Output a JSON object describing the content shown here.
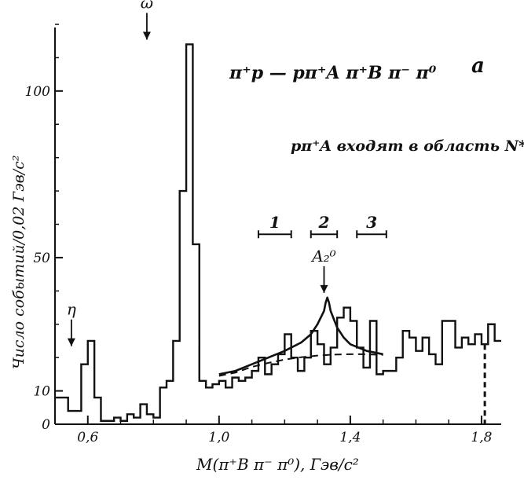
{
  "chart_data": {
    "type": "histogram",
    "reaction": "π⁺p — pπ⁺A π⁺B π⁻ π⁰",
    "panel_label": "a",
    "condition": "pπ⁺A входят в область N*++",
    "xlabel": "M(π⁺B π⁻ π⁰), Гэв/c²",
    "ylabel": "Число событий/0,02 Гэв/c²",
    "xlim": [
      0.5,
      1.86
    ],
    "ylim": [
      0,
      120
    ],
    "x_ticks": [
      0.6,
      1.0,
      1.4,
      1.8
    ],
    "x_tick_labels": [
      "0,6",
      "1,0",
      "1,4",
      "1,8"
    ],
    "y_ticks": [
      0,
      10,
      50,
      100
    ],
    "y_tick_labels": [
      "0",
      "10",
      "50",
      "100"
    ],
    "bin_width": 0.02,
    "bins_start": 0.5,
    "counts": [
      8,
      8,
      4,
      4,
      18,
      25,
      8,
      1,
      1,
      2,
      1,
      3,
      2,
      6,
      3,
      2,
      11,
      13,
      25,
      70,
      114,
      54,
      13,
      11,
      12,
      13,
      11,
      14,
      13,
      14,
      16,
      20,
      15,
      18,
      21,
      27,
      20,
      16,
      20,
      28,
      24,
      18,
      23,
      32,
      35,
      31,
      23,
      17,
      31,
      15,
      16,
      16,
      20,
      28,
      26,
      22,
      26,
      21,
      18,
      31,
      31,
      23,
      26,
      24,
      27,
      24,
      30,
      25
    ],
    "peak_labels": [
      {
        "label": "η",
        "x": 0.55
      },
      {
        "label": "ω",
        "x": 0.78
      },
      {
        "label": "A₂⁰",
        "x": 1.32
      }
    ],
    "intervals": [
      {
        "label": "1",
        "x0": 1.12,
        "x1": 1.22
      },
      {
        "label": "2",
        "x0": 1.28,
        "x1": 1.36
      },
      {
        "label": "3",
        "x0": 1.42,
        "x1": 1.51
      }
    ],
    "fit_curve": [
      [
        1.0,
        15
      ],
      [
        1.05,
        16
      ],
      [
        1.1,
        18
      ],
      [
        1.15,
        20
      ],
      [
        1.2,
        22
      ],
      [
        1.25,
        24.5
      ],
      [
        1.28,
        27
      ],
      [
        1.3,
        30
      ],
      [
        1.32,
        34
      ],
      [
        1.325,
        36.5
      ],
      [
        1.33,
        38
      ],
      [
        1.335,
        36.5
      ],
      [
        1.34,
        34
      ],
      [
        1.36,
        29
      ],
      [
        1.38,
        26
      ],
      [
        1.4,
        24
      ],
      [
        1.45,
        22
      ],
      [
        1.5,
        21
      ]
    ],
    "background_curve": [
      [
        1.0,
        14.5
      ],
      [
        1.05,
        15.5
      ],
      [
        1.1,
        17.2
      ],
      [
        1.15,
        18.4
      ],
      [
        1.2,
        19.4
      ],
      [
        1.25,
        20.1
      ],
      [
        1.3,
        20.6
      ],
      [
        1.35,
        20.9
      ],
      [
        1.4,
        21
      ],
      [
        1.45,
        21
      ],
      [
        1.5,
        20.8
      ]
    ],
    "cutoff_x": 1.81
  }
}
